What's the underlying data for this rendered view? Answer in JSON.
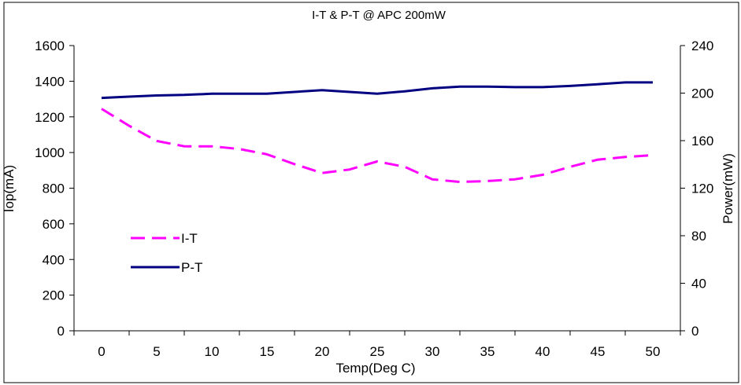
{
  "chart_data": {
    "type": "line",
    "title": "I-T & P-T @ APC 200mW",
    "xlabel": "Temp(Deg C)",
    "ylabel": "Iop(mA)",
    "y2label": "Power(mW)",
    "xlim": [
      -2.5,
      52.5
    ],
    "ylim": [
      0,
      1600
    ],
    "y2lim": [
      0,
      240
    ],
    "xticks": [
      "0",
      "5",
      "10",
      "15",
      "20",
      "25",
      "30",
      "35",
      "40",
      "45",
      "50"
    ],
    "yticks": [
      "0",
      "200",
      "400",
      "600",
      "800",
      "1000",
      "1200",
      "1400",
      "1600"
    ],
    "y2ticks": [
      "0",
      "40",
      "80",
      "120",
      "160",
      "200",
      "240"
    ],
    "grid": false,
    "legend_position": "left-middle",
    "series": [
      {
        "name": "I-T",
        "axis": "left",
        "color": "#FF00FF",
        "style": "dashed",
        "x": [
          0,
          2.5,
          5,
          7.5,
          10,
          12.5,
          15,
          17.5,
          20,
          22.5,
          25,
          27.5,
          30,
          32.5,
          35,
          37.5,
          40,
          42.5,
          45,
          47.5,
          50
        ],
        "values": [
          1245,
          1150,
          1065,
          1035,
          1035,
          1020,
          990,
          935,
          885,
          905,
          950,
          920,
          850,
          835,
          840,
          850,
          875,
          920,
          960,
          975,
          985
        ]
      },
      {
        "name": "P-T",
        "axis": "right",
        "color": "#000080",
        "style": "solid",
        "x": [
          0,
          2.5,
          5,
          7.5,
          10,
          12.5,
          15,
          17.5,
          20,
          22.5,
          25,
          27.5,
          30,
          32.5,
          35,
          37.5,
          40,
          42.5,
          45,
          47.5,
          50
        ],
        "values": [
          196,
          197,
          198,
          198.5,
          199.5,
          199.5,
          199.5,
          201,
          202.5,
          201,
          199.5,
          201.5,
          204,
          205.5,
          205.5,
          205,
          205,
          206,
          207.5,
          209,
          209
        ]
      }
    ]
  }
}
